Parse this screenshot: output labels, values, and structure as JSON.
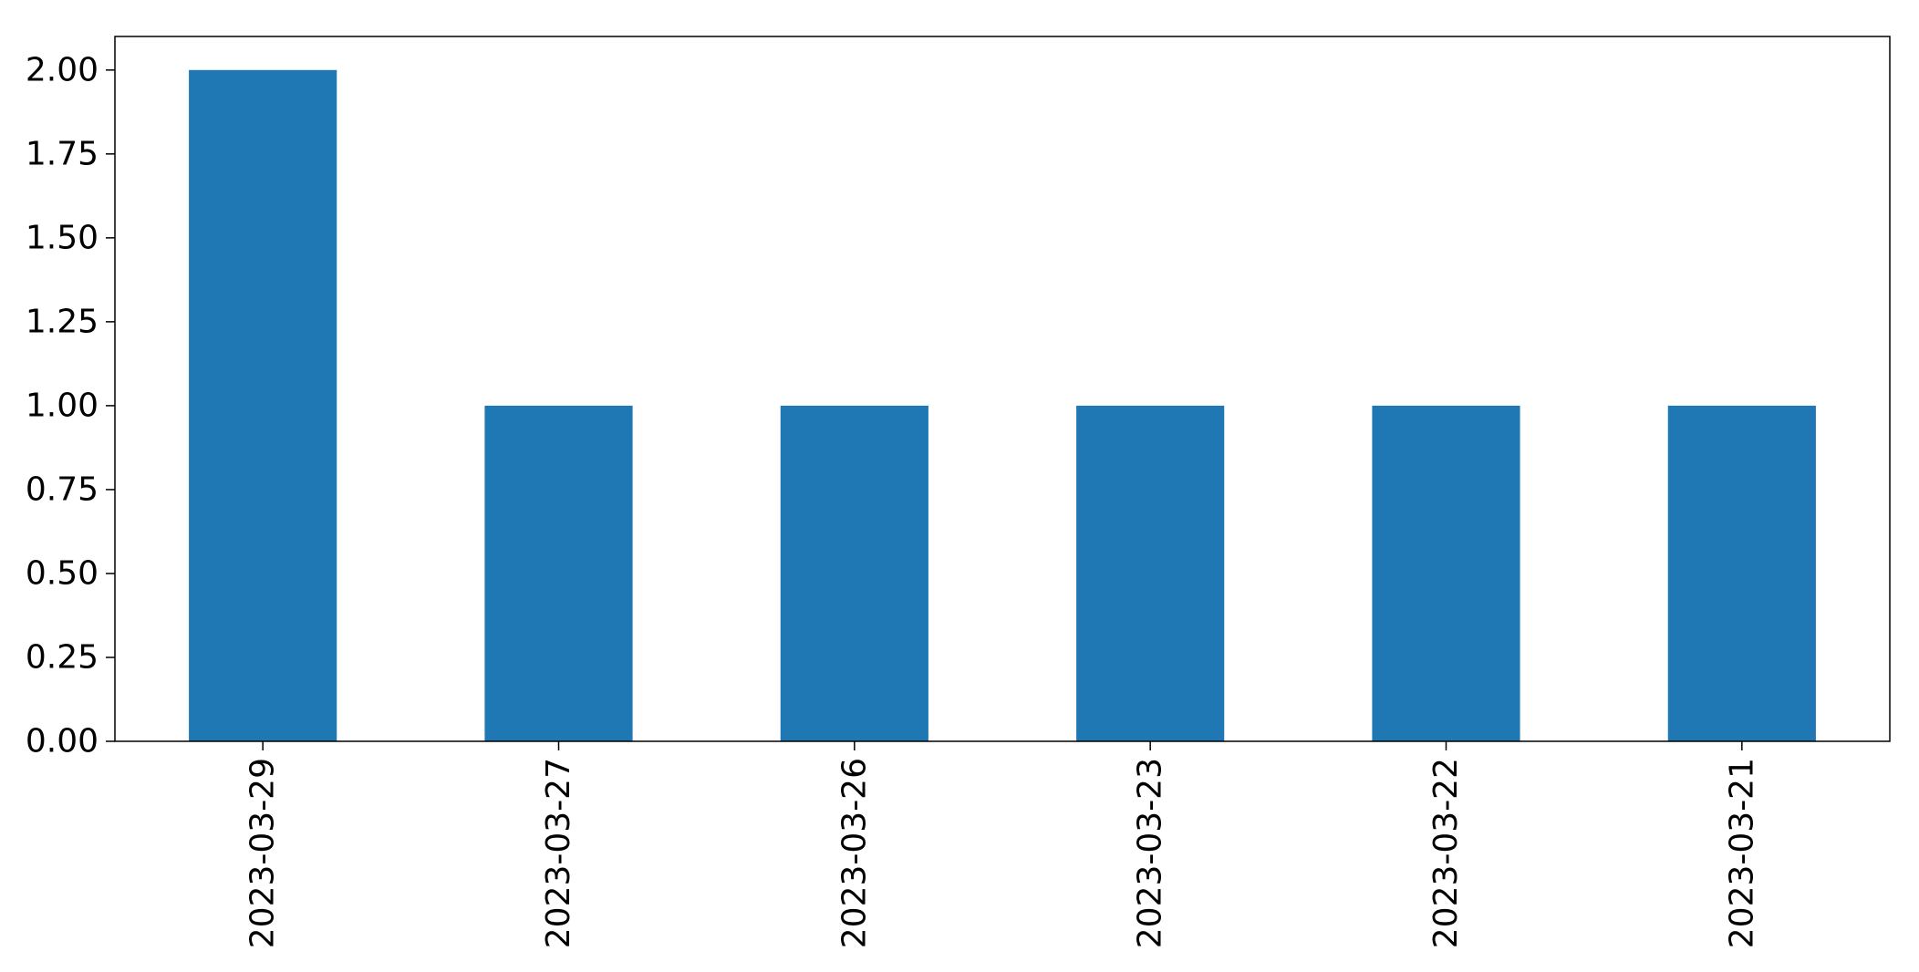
{
  "chart_data": {
    "type": "bar",
    "title": "",
    "xlabel": "",
    "ylabel": "",
    "categories": [
      "2023-03-29",
      "2023-03-27",
      "2023-03-26",
      "2023-03-23",
      "2023-03-22",
      "2023-03-21"
    ],
    "values": [
      2,
      1,
      1,
      1,
      1,
      1
    ],
    "ylim": [
      0,
      2.1
    ],
    "yticks": [
      "0.00",
      "0.25",
      "0.50",
      "0.75",
      "1.00",
      "1.25",
      "1.50",
      "1.75",
      "2.00"
    ],
    "grid": false,
    "legend": false,
    "colors": {
      "bar": "#1f77b4",
      "axis": "#000000",
      "background": "#ffffff"
    }
  }
}
